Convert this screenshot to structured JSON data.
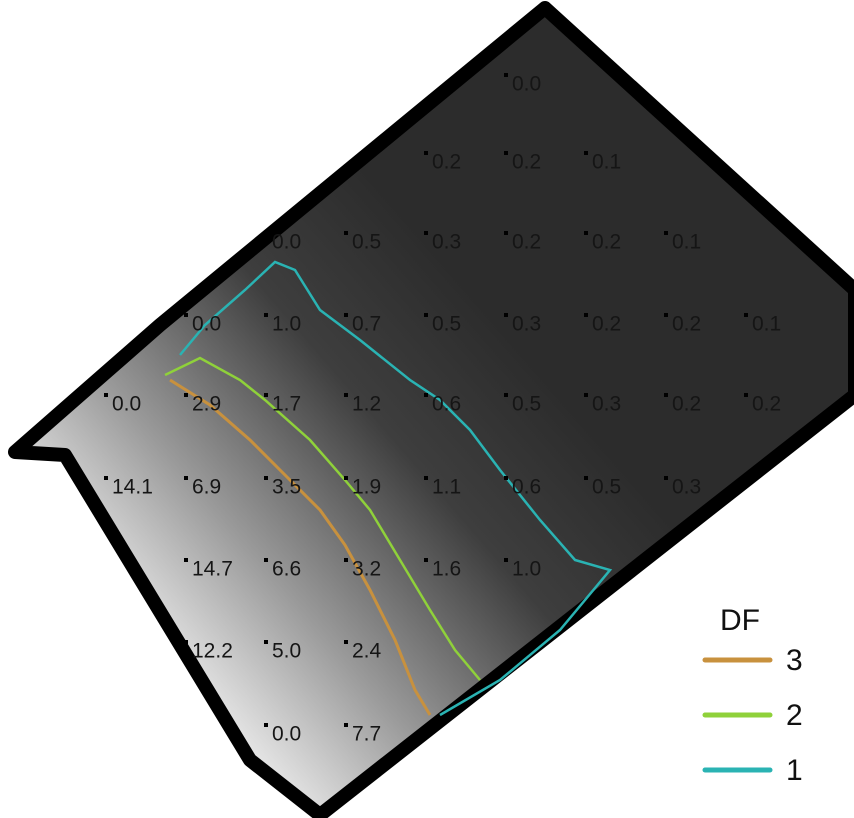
{
  "grid": {
    "rows": [
      [
        null,
        null,
        null,
        null,
        null,
        "0.0",
        null,
        null,
        null
      ],
      [
        null,
        null,
        null,
        null,
        "0.2",
        "0.2",
        "0.1",
        null,
        null
      ],
      [
        null,
        null,
        "0.0",
        "0.5",
        "0.3",
        "0.2",
        "0.2",
        "0.1",
        null
      ],
      [
        null,
        "0.0",
        "1.0",
        "0.7",
        "0.5",
        "0.3",
        "0.2",
        "0.2",
        "0.1"
      ],
      [
        "0.0",
        "2.9",
        "1.7",
        "1.2",
        "0.6",
        "0.5",
        "0.3",
        "0.2",
        "0.2"
      ],
      [
        "14.1",
        "6.9",
        "3.5",
        "1.9",
        "1.1",
        "0.6",
        "0.5",
        "0.3",
        null
      ],
      [
        null,
        "14.7",
        "6.6",
        "3.2",
        "1.6",
        "1.0",
        null,
        null,
        null
      ],
      [
        null,
        "12.2",
        "5.0",
        "2.4",
        null,
        null,
        null,
        null,
        null
      ],
      [
        null,
        null,
        "0.0",
        "7.7",
        null,
        null,
        null,
        null,
        null
      ]
    ]
  },
  "legend": {
    "title": "DF",
    "items": [
      {
        "label": "3",
        "color": "#c8913e"
      },
      {
        "label": "2",
        "color": "#8fd13a"
      },
      {
        "label": "1",
        "color": "#2ab3b3"
      }
    ]
  }
}
